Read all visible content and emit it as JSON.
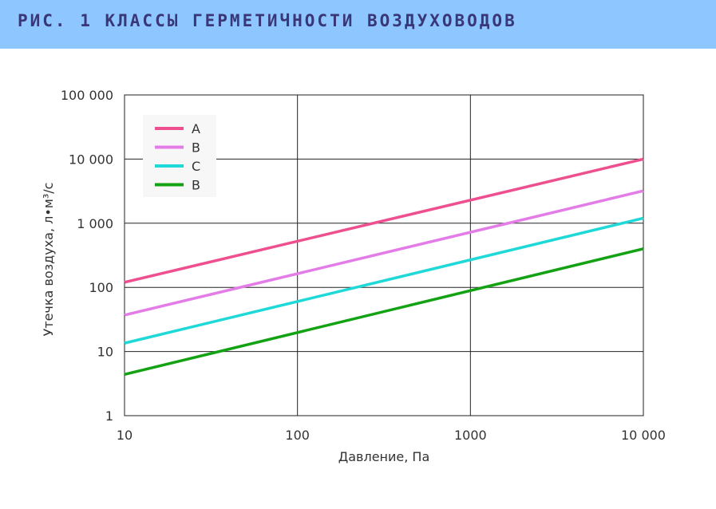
{
  "header": {
    "title": "РИС. 1 КЛАССЫ ГЕРМЕТИЧНОСТИ ВОЗДУХОВОДОВ"
  },
  "chart_data": {
    "type": "line",
    "xscale": "log",
    "yscale": "log",
    "xlabel": "Давление, Па",
    "ylabel": "Утечка воздуха, л•м³/с",
    "xlim": [
      10,
      10000
    ],
    "ylim": [
      1,
      100000
    ],
    "x_ticks": [
      10,
      100,
      1000,
      10000
    ],
    "x_tick_labels": [
      "10",
      "100",
      "1000",
      "10 000"
    ],
    "y_ticks": [
      1,
      10,
      100,
      1000,
      10000,
      100000
    ],
    "y_tick_labels": [
      "1",
      "10",
      "100",
      "1 000",
      "10 000",
      "100 000"
    ],
    "grid": true,
    "legend_position": "top-left",
    "series": [
      {
        "name": "A",
        "color": "#ee4f8e",
        "x": [
          10,
          10000
        ],
        "y": [
          120,
          10000
        ]
      },
      {
        "name": "B",
        "color": "#e47ce8",
        "x": [
          10,
          10000
        ],
        "y": [
          37,
          3200
        ]
      },
      {
        "name": "C",
        "color": "#1fd8d8",
        "x": [
          10,
          10000
        ],
        "y": [
          13.5,
          1200
        ]
      },
      {
        "name": "B",
        "color": "#13a213",
        "x": [
          10,
          10000
        ],
        "y": [
          4.4,
          400
        ]
      }
    ]
  }
}
